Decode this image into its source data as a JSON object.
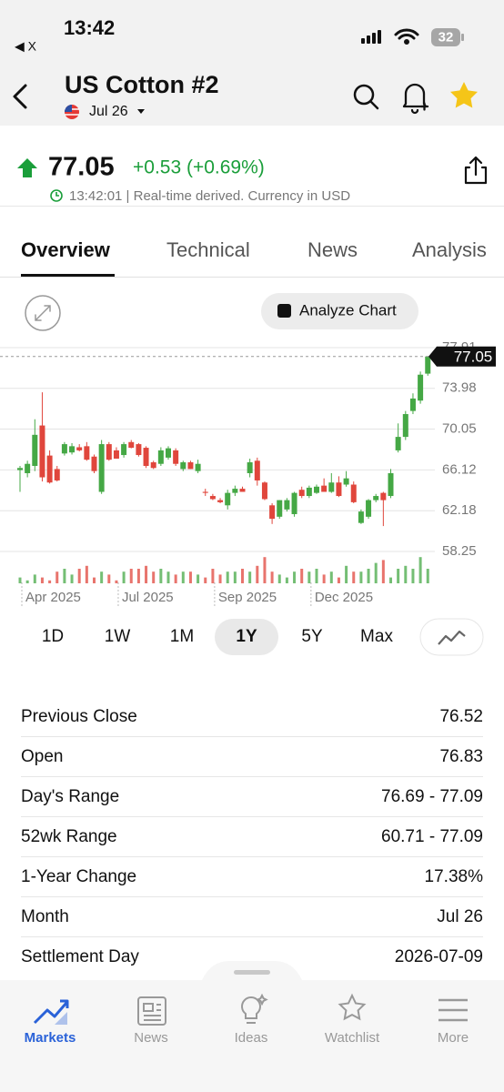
{
  "status_bar": {
    "time": "13:42",
    "back_label": "◀ X",
    "battery": "32"
  },
  "header": {
    "title": "US Cotton #2",
    "contract": "Jul 26"
  },
  "quote": {
    "price": "77.05",
    "change": "+0.53 (+0.69%)",
    "timestamp": "13:42:01 | Real-time derived. Currency in USD"
  },
  "tabs": [
    "Overview",
    "Technical",
    "News",
    "Analysis"
  ],
  "active_tab": 0,
  "analyze_button": "Analyze Chart",
  "chart_data": {
    "type": "candlestick",
    "categories": [
      "Apr 2025",
      null,
      null,
      null,
      null,
      null,
      null,
      null,
      null,
      null,
      null,
      null,
      null,
      "Jul 2025",
      null,
      null,
      null,
      null,
      null,
      null,
      null,
      null,
      null,
      null,
      null,
      null,
      "Sep 2025",
      null,
      null,
      null,
      null,
      null,
      null,
      null,
      null,
      null,
      null,
      null,
      null,
      "Dec 2025",
      null,
      null,
      null,
      null,
      null,
      null,
      null,
      null,
      null,
      null,
      null,
      null,
      null,
      null,
      null,
      null
    ],
    "open": [
      66.1,
      65.8,
      66.5,
      70.4,
      67.5,
      66.2,
      67.7,
      67.8,
      68.3,
      68.4,
      67.4,
      64.0,
      68.6,
      68.0,
      67.55,
      68.8,
      68.6,
      68.25,
      66.85,
      66.7,
      67.3,
      68.0,
      66.2,
      66.85,
      66.0,
      64.0,
      63.6,
      63.2,
      62.7,
      63.9,
      64.3,
      65.8,
      67.0,
      64.9,
      62.7,
      61.6,
      62.3,
      61.85,
      64.2,
      63.6,
      63.9,
      64.6,
      64.0,
      64.9,
      64.7,
      64.7,
      61.0,
      61.6,
      63.2,
      63.9,
      63.6,
      68.0,
      69.3,
      71.8,
      72.8,
      75.4
    ],
    "high": [
      66.5,
      67.0,
      71.0,
      73.6,
      68.0,
      66.5,
      68.8,
      68.7,
      68.6,
      68.8,
      67.6,
      69.0,
      68.8,
      68.3,
      68.8,
      69.0,
      68.7,
      68.4,
      67.0,
      68.3,
      68.4,
      68.2,
      67.0,
      67.0,
      67.1,
      64.3,
      63.8,
      63.4,
      64.2,
      64.6,
      64.5,
      67.2,
      67.3,
      65.0,
      62.9,
      63.2,
      63.4,
      64.0,
      64.5,
      64.6,
      64.7,
      65.3,
      65.8,
      65.5,
      66.0,
      65.0,
      62.3,
      63.3,
      63.8,
      64.0,
      66.2,
      70.6,
      71.8,
      73.5,
      75.6,
      77.1
    ],
    "low": [
      64.0,
      65.4,
      66.0,
      65.0,
      64.8,
      65.0,
      67.5,
      67.6,
      67.9,
      67.0,
      65.8,
      63.8,
      67.0,
      67.2,
      67.3,
      68.2,
      67.4,
      66.3,
      66.2,
      66.5,
      67.1,
      66.5,
      66.0,
      66.2,
      65.8,
      63.6,
      63.2,
      62.9,
      62.3,
      63.6,
      64.0,
      65.4,
      64.6,
      63.2,
      60.9,
      61.4,
      62.1,
      61.6,
      63.4,
      63.4,
      63.8,
      64.0,
      63.9,
      63.5,
      64.5,
      62.9,
      60.9,
      61.4,
      63.0,
      60.7,
      63.4,
      67.8,
      69.0,
      71.5,
      72.5,
      75.2
    ],
    "close": [
      66.3,
      66.7,
      69.5,
      65.4,
      64.9,
      65.1,
      68.6,
      68.4,
      68.0,
      67.1,
      66.0,
      68.6,
      67.1,
      67.2,
      68.6,
      68.25,
      67.55,
      66.5,
      66.3,
      68.0,
      68.2,
      66.7,
      66.85,
      66.2,
      66.7,
      63.9,
      63.3,
      63.0,
      63.9,
      64.3,
      64.0,
      66.85,
      65.1,
      63.3,
      61.4,
      63.2,
      63.2,
      63.9,
      63.6,
      64.4,
      64.5,
      64.0,
      64.9,
      63.6,
      65.3,
      63.0,
      62.1,
      63.2,
      63.6,
      63.2,
      65.8,
      69.3,
      71.5,
      73.0,
      75.3,
      77.05
    ],
    "volume": [
      2,
      1,
      3,
      2,
      1,
      4,
      5,
      3,
      5,
      6,
      2,
      4,
      3,
      1,
      4,
      5,
      5,
      6,
      4,
      5,
      4,
      3,
      4,
      4,
      3,
      2,
      5,
      3,
      4,
      4,
      5,
      4,
      6,
      9,
      4,
      3,
      2,
      4,
      5,
      4,
      5,
      3,
      4,
      2,
      6,
      4,
      4,
      5,
      7,
      8,
      2,
      5,
      6,
      5,
      9,
      5
    ],
    "up_color": "#45a845",
    "down_color": "#e0463c",
    "ylim": [
      58.25,
      77.91
    ],
    "yticks": [
      58.25,
      62.18,
      66.12,
      70.05,
      73.98,
      77.91
    ],
    "grid": true,
    "last_price_label": "77.05"
  },
  "ranges": [
    "1D",
    "1W",
    "1M",
    "1Y",
    "5Y",
    "Max"
  ],
  "active_range": 3,
  "stats": [
    [
      "Previous Close",
      "76.52"
    ],
    [
      "Open",
      "76.83"
    ],
    [
      "Day's Range",
      "76.69 - 77.09"
    ],
    [
      "52wk Range",
      "60.71 - 77.09"
    ],
    [
      "1-Year Change",
      "17.38%"
    ],
    [
      "Month",
      "Jul 26"
    ],
    [
      "Settlement Day",
      "2026-07-09"
    ]
  ],
  "nav": [
    "Markets",
    "News",
    "Ideas",
    "Watchlist",
    "More"
  ],
  "active_nav": 0
}
